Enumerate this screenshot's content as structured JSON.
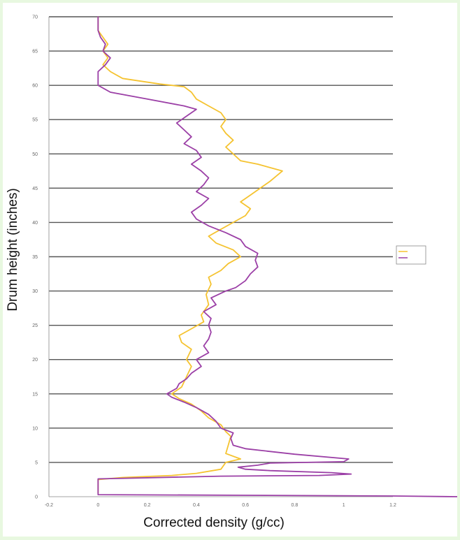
{
  "chart_data": {
    "type": "line",
    "title": "",
    "xlabel": "Corrected density (g/cc)",
    "ylabel": "Drum height (inches)",
    "xlim": [
      -0.2,
      1.2
    ],
    "ylim": [
      0,
      70
    ],
    "x_ticks": [
      "-0.2",
      "0",
      "0.2",
      "0.4",
      "0.6",
      "0.8",
      "1",
      "1.2"
    ],
    "y_ticks": [
      "0",
      "5",
      "10",
      "15",
      "20",
      "25",
      "30",
      "35",
      "40",
      "45",
      "50",
      "55",
      "60",
      "65",
      "70"
    ],
    "grid": "horizontal",
    "legend_position": "right",
    "series": [
      {
        "name": "",
        "color": "#f5c330",
        "points": [
          [
            0.0,
            0.5
          ],
          [
            0.0,
            2.5
          ],
          [
            0.1,
            2.8
          ],
          [
            0.3,
            3.1
          ],
          [
            0.4,
            3.4
          ],
          [
            0.5,
            4.0
          ],
          [
            0.52,
            5.0
          ],
          [
            0.58,
            5.5
          ],
          [
            0.52,
            6.3
          ],
          [
            0.53,
            7.5
          ],
          [
            0.54,
            8.8
          ],
          [
            0.52,
            9.5
          ],
          [
            0.5,
            10.5
          ],
          [
            0.45,
            11.5
          ],
          [
            0.42,
            12.5
          ],
          [
            0.38,
            13.5
          ],
          [
            0.33,
            14.3
          ],
          [
            0.3,
            15.0
          ],
          [
            0.34,
            16.0
          ],
          [
            0.36,
            17.5
          ],
          [
            0.38,
            19.0
          ],
          [
            0.36,
            20.0
          ],
          [
            0.38,
            21.5
          ],
          [
            0.34,
            22.5
          ],
          [
            0.33,
            23.5
          ],
          [
            0.38,
            24.5
          ],
          [
            0.43,
            25.5
          ],
          [
            0.42,
            26.5
          ],
          [
            0.45,
            28.0
          ],
          [
            0.44,
            29.5
          ],
          [
            0.46,
            31.0
          ],
          [
            0.45,
            32.0
          ],
          [
            0.5,
            33.0
          ],
          [
            0.53,
            34.0
          ],
          [
            0.58,
            35.0
          ],
          [
            0.55,
            36.0
          ],
          [
            0.48,
            37.0
          ],
          [
            0.45,
            38.0
          ],
          [
            0.5,
            39.0
          ],
          [
            0.55,
            40.0
          ],
          [
            0.6,
            41.0
          ],
          [
            0.62,
            42.0
          ],
          [
            0.58,
            43.0
          ],
          [
            0.62,
            44.0
          ],
          [
            0.66,
            45.0
          ],
          [
            0.7,
            46.0
          ],
          [
            0.75,
            47.5
          ],
          [
            0.65,
            48.5
          ],
          [
            0.58,
            49.0
          ],
          [
            0.55,
            50.0
          ],
          [
            0.52,
            51.0
          ],
          [
            0.55,
            52.0
          ],
          [
            0.52,
            53.0
          ],
          [
            0.5,
            54.0
          ],
          [
            0.52,
            55.0
          ],
          [
            0.5,
            56.0
          ],
          [
            0.45,
            57.0
          ],
          [
            0.4,
            58.0
          ],
          [
            0.38,
            59.0
          ],
          [
            0.35,
            59.8
          ],
          [
            0.25,
            60.2
          ],
          [
            0.1,
            61.0
          ],
          [
            0.05,
            62.0
          ],
          [
            0.02,
            63.0
          ],
          [
            0.04,
            64.0
          ],
          [
            0.02,
            65.0
          ],
          [
            0.04,
            66.0
          ],
          [
            0.02,
            67.0
          ],
          [
            0.0,
            68.0
          ],
          [
            0.0,
            70.0
          ]
        ]
      },
      {
        "name": "",
        "color": "#9b3fa6",
        "points": [
          [
            1.5,
            0.0
          ],
          [
            1.2,
            0.1
          ],
          [
            0.6,
            0.2
          ],
          [
            0.0,
            0.3
          ],
          [
            0.0,
            2.0
          ],
          [
            0.0,
            2.6
          ],
          [
            0.5,
            3.0
          ],
          [
            0.9,
            3.1
          ],
          [
            1.03,
            3.3
          ],
          [
            0.95,
            3.5
          ],
          [
            0.7,
            3.8
          ],
          [
            0.6,
            4.0
          ],
          [
            0.57,
            4.3
          ],
          [
            0.65,
            4.6
          ],
          [
            0.7,
            4.9
          ],
          [
            1.0,
            5.1
          ],
          [
            1.02,
            5.5
          ],
          [
            0.8,
            6.2
          ],
          [
            0.6,
            7.0
          ],
          [
            0.55,
            7.5
          ],
          [
            0.54,
            8.5
          ],
          [
            0.55,
            9.3
          ],
          [
            0.5,
            10.0
          ],
          [
            0.48,
            11.0
          ],
          [
            0.45,
            12.0
          ],
          [
            0.4,
            13.0
          ],
          [
            0.35,
            13.8
          ],
          [
            0.3,
            14.5
          ],
          [
            0.28,
            15.0
          ],
          [
            0.32,
            15.8
          ],
          [
            0.33,
            16.5
          ],
          [
            0.36,
            17.2
          ],
          [
            0.38,
            18.0
          ],
          [
            0.42,
            19.0
          ],
          [
            0.4,
            20.0
          ],
          [
            0.45,
            21.0
          ],
          [
            0.43,
            22.0
          ],
          [
            0.45,
            23.0
          ],
          [
            0.46,
            24.0
          ],
          [
            0.45,
            25.0
          ],
          [
            0.46,
            26.0
          ],
          [
            0.43,
            27.0
          ],
          [
            0.48,
            28.0
          ],
          [
            0.46,
            29.0
          ],
          [
            0.52,
            30.0
          ],
          [
            0.56,
            30.5
          ],
          [
            0.6,
            31.5
          ],
          [
            0.62,
            32.5
          ],
          [
            0.65,
            33.5
          ],
          [
            0.64,
            34.5
          ],
          [
            0.65,
            35.5
          ],
          [
            0.6,
            36.5
          ],
          [
            0.58,
            37.5
          ],
          [
            0.52,
            38.5
          ],
          [
            0.45,
            39.5
          ],
          [
            0.4,
            40.5
          ],
          [
            0.38,
            41.5
          ],
          [
            0.42,
            42.5
          ],
          [
            0.45,
            43.5
          ],
          [
            0.4,
            44.5
          ],
          [
            0.43,
            45.5
          ],
          [
            0.45,
            46.5
          ],
          [
            0.42,
            47.5
          ],
          [
            0.38,
            48.5
          ],
          [
            0.42,
            49.5
          ],
          [
            0.4,
            50.5
          ],
          [
            0.35,
            51.5
          ],
          [
            0.38,
            52.5
          ],
          [
            0.35,
            53.5
          ],
          [
            0.32,
            54.5
          ],
          [
            0.36,
            55.5
          ],
          [
            0.4,
            56.5
          ],
          [
            0.35,
            57.0
          ],
          [
            0.2,
            58.0
          ],
          [
            0.05,
            59.0
          ],
          [
            0.0,
            60.0
          ],
          [
            0.0,
            61.5
          ],
          [
            0.0,
            62.0
          ],
          [
            0.03,
            63.0
          ],
          [
            0.05,
            64.0
          ],
          [
            0.02,
            65.0
          ],
          [
            0.03,
            66.0
          ],
          [
            0.01,
            67.0
          ],
          [
            0.0,
            68.0
          ],
          [
            0.0,
            70.0
          ]
        ]
      }
    ]
  }
}
